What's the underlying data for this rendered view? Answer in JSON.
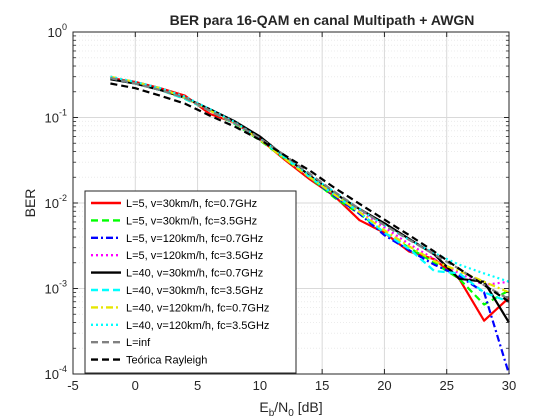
{
  "chart_data": {
    "type": "line",
    "title": "BER para 16-QAM en canal Multipath + AWGN",
    "xlabel": {
      "base": "E",
      "sub1": "b",
      "mid": "/N",
      "sub2": "0",
      "unit": " [dB]"
    },
    "ylabel": "BER",
    "xlim": [
      -5,
      30
    ],
    "ylim": [
      0.0001,
      1
    ],
    "yscale": "log",
    "grid": true,
    "minor_grid": true,
    "legend_position": "bottom-left",
    "x_ticks": [
      "-5",
      "0",
      "5",
      "10",
      "15",
      "20",
      "25",
      "30"
    ],
    "y_ticks": [
      {
        "base": "10",
        "exp": "0"
      },
      {
        "base": "10",
        "exp": "-1"
      },
      {
        "base": "10",
        "exp": "-2"
      },
      {
        "base": "10",
        "exp": "-3"
      },
      {
        "base": "10",
        "exp": "-4"
      }
    ],
    "x": [
      -2,
      0,
      2,
      4,
      6,
      8,
      10,
      12,
      14,
      16,
      18,
      20,
      22,
      24,
      26,
      28,
      30
    ],
    "series": [
      {
        "name": "L=5, v=30km/h, fc=0.7GHz",
        "color": "#ff0000",
        "dash": "solid",
        "values": [
          0.29,
          0.26,
          0.22,
          0.18,
          0.11,
          0.087,
          0.056,
          0.032,
          0.019,
          0.012,
          0.0063,
          0.0045,
          0.0027,
          0.0022,
          0.0013,
          0.00042,
          0.00078
        ]
      },
      {
        "name": "L=5, v=30km/h, fc=3.5GHz",
        "color": "#00ff00",
        "dash": "dashed",
        "values": [
          0.29,
          0.25,
          0.21,
          0.165,
          0.12,
          0.084,
          0.054,
          0.033,
          0.02,
          0.0115,
          0.0075,
          0.0045,
          0.003,
          0.002,
          0.0013,
          0.00065,
          0.00095
        ]
      },
      {
        "name": "L=5, v=120km/h, fc=0.7GHz",
        "color": "#0000ff",
        "dash": "dashdot",
        "values": [
          0.29,
          0.26,
          0.22,
          0.17,
          0.12,
          0.086,
          0.055,
          0.034,
          0.02,
          0.012,
          0.0075,
          0.0042,
          0.0028,
          0.0019,
          0.0014,
          0.0009,
          0.0001
        ]
      },
      {
        "name": "L=5, v=120km/h, fc=3.5GHz",
        "color": "#ff00ff",
        "dash": "dotted",
        "values": [
          0.3,
          0.26,
          0.22,
          0.17,
          0.12,
          0.085,
          0.055,
          0.034,
          0.02,
          0.013,
          0.008,
          0.0052,
          0.0033,
          0.0022,
          0.0015,
          0.0011,
          0.0012
        ]
      },
      {
        "name": "L=40, v=30km/h, fc=0.7GHz",
        "color": "#000000",
        "dash": "solid",
        "values": [
          0.28,
          0.25,
          0.21,
          0.17,
          0.125,
          0.09,
          0.06,
          0.035,
          0.021,
          0.013,
          0.0085,
          0.0058,
          0.0038,
          0.0025,
          0.0013,
          0.0012,
          0.0004
        ]
      },
      {
        "name": "L=40, v=30km/h, fc=3.5GHz",
        "color": "#00ffff",
        "dash": "dashed",
        "values": [
          0.29,
          0.25,
          0.21,
          0.165,
          0.12,
          0.085,
          0.055,
          0.034,
          0.02,
          0.0125,
          0.0078,
          0.0045,
          0.0029,
          0.0016,
          0.0015,
          0.0009,
          0.0007
        ]
      },
      {
        "name": "L=40, v=120km/h, fc=0.7GHz",
        "color": "#e6e600",
        "dash": "dashdot",
        "values": [
          0.3,
          0.26,
          0.22,
          0.17,
          0.12,
          0.086,
          0.055,
          0.033,
          0.02,
          0.0125,
          0.0078,
          0.0048,
          0.0031,
          0.0021,
          0.0016,
          0.0012,
          0.0009
        ]
      },
      {
        "name": "L=40, v=120km/h, fc=3.5GHz",
        "color": "#00ffff",
        "dash": "dotted",
        "values": [
          0.3,
          0.26,
          0.22,
          0.175,
          0.125,
          0.088,
          0.057,
          0.035,
          0.021,
          0.0135,
          0.0085,
          0.0055,
          0.0037,
          0.0026,
          0.0019,
          0.0015,
          0.0012
        ]
      },
      {
        "name": "L=inf",
        "color": "#808080",
        "dash": "dashed",
        "values": [
          0.29,
          0.25,
          0.21,
          0.17,
          0.12,
          0.086,
          0.057,
          0.036,
          0.022,
          0.0135,
          0.0085,
          0.0055,
          0.0037,
          0.0025,
          0.0017,
          0.0011,
          0.00075
        ]
      },
      {
        "name": "Teórica Rayleigh",
        "color": "#000000",
        "dash": "dashed",
        "values": [
          0.25,
          0.22,
          0.18,
          0.145,
          0.105,
          0.078,
          0.055,
          0.036,
          0.024,
          0.015,
          0.0098,
          0.0064,
          0.0042,
          0.0027,
          0.0017,
          0.0011,
          0.0007
        ]
      }
    ]
  }
}
